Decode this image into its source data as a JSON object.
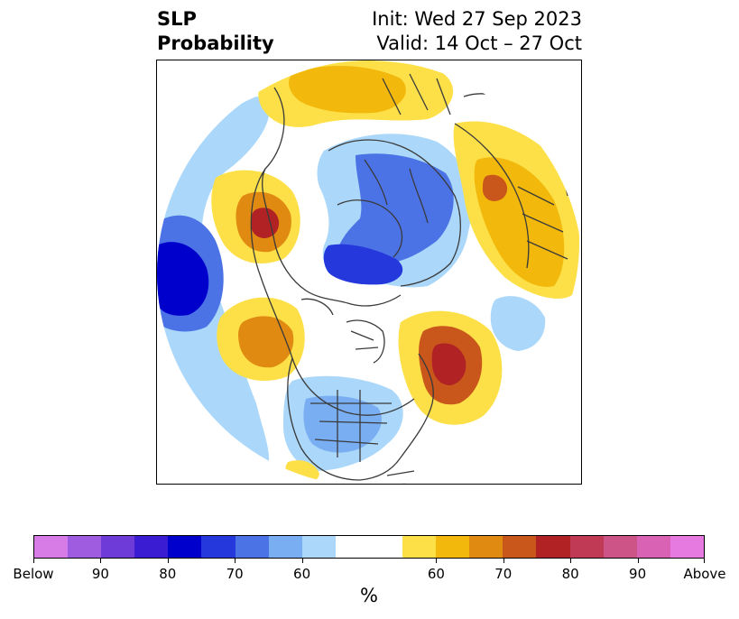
{
  "title": {
    "left_line1": "SLP",
    "left_line2": "Probability",
    "right_line1": "Init: Wed 27 Sep 2023",
    "right_line2": "Valid: 14 Oct – 27 Oct"
  },
  "colorbar": {
    "colors": [
      "#d77be6",
      "#a05ce0",
      "#6e3ad8",
      "#3a1dd3",
      "#0000cd",
      "#2538dc",
      "#4b73e6",
      "#7aaef2",
      "#abd8fa",
      "#ffffff",
      "#ffffff",
      "#fde047",
      "#f2b90c",
      "#e08a12",
      "#c9561b",
      "#b12225",
      "#c03a55",
      "#cc5486",
      "#da62b5",
      "#e67ae0"
    ],
    "tick_labels": [
      "Below",
      "90",
      "80",
      "70",
      "60",
      "60",
      "70",
      "80",
      "90",
      "Above"
    ],
    "unit_label": "%"
  },
  "map": {
    "projection": "north-polar-stereographic",
    "colors": {
      "above_light": "#fde047",
      "above_60": "#f2b90c",
      "above_70": "#e08a12",
      "above_80": "#c9561b",
      "above_90": "#b12225",
      "below_light": "#abd8fa",
      "below_60": "#7aaef2",
      "below_70": "#4b73e6",
      "below_80": "#2538dc",
      "below_90": "#0000cd",
      "coastline": "#3a3a3a"
    }
  }
}
